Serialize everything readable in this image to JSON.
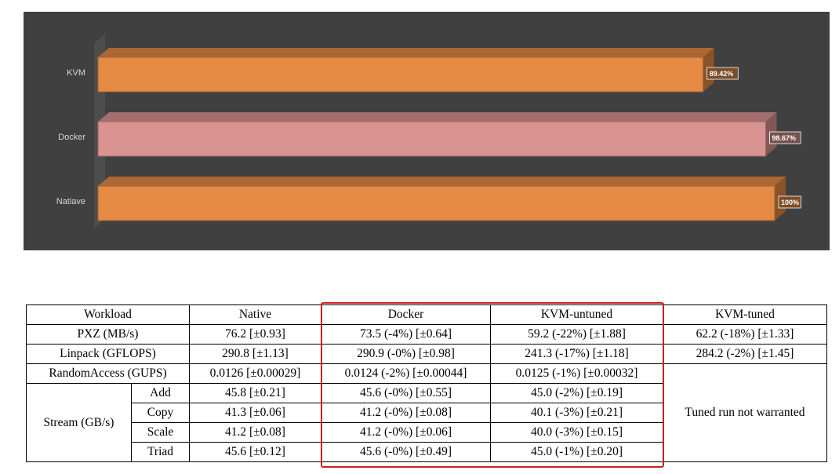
{
  "chart_data": {
    "type": "bar",
    "orientation": "horizontal",
    "style": "3d",
    "categories": [
      "KVM",
      "Docker",
      "Natiave"
    ],
    "values": [
      89.42,
      98.67,
      100
    ],
    "value_labels": [
      "89.42%",
      "98.67%",
      "100%"
    ],
    "colors": [
      "#e48a45",
      "#d99391",
      "#e48a45"
    ],
    "xlim": [
      0,
      100
    ],
    "background": "#404040",
    "grid": false,
    "legend": "none"
  },
  "table": {
    "headers": [
      "Workload",
      "Native",
      "Docker",
      "KVM-untuned",
      "KVM-tuned"
    ],
    "rows": [
      {
        "workload": "PXZ (MB/s)",
        "native": "76.2 [±0.93]",
        "docker": "73.5 (-4%) [±0.64]",
        "kvm_untuned": "59.2 (-22%) [±1.88]",
        "kvm_tuned": "62.2 (-18%) [±1.33]"
      },
      {
        "workload": "Linpack (GFLOPS)",
        "native": "290.8 [±1.13]",
        "docker": "290.9 (-0%) [±0.98]",
        "kvm_untuned": "241.3 (-17%) [±1.18]",
        "kvm_tuned": "284.2 (-2%) [±1.45]"
      },
      {
        "workload": "RandomAccess (GUPS)",
        "native": "0.0126 [±0.00029]",
        "docker": "0.0124 (-2%) [±0.00044]",
        "kvm_untuned": "0.0125 (-1%) [±0.00032]"
      }
    ],
    "stream": {
      "label": "Stream (GB/s)",
      "rows": [
        {
          "sub": "Add",
          "native": "45.8 [±0.21]",
          "docker": "45.6 (-0%) [±0.55]",
          "kvm_untuned": "45.0 (-2%) [±0.19]"
        },
        {
          "sub": "Copy",
          "native": "41.3 [±0.06]",
          "docker": "41.2 (-0%) [±0.08]",
          "kvm_untuned": "40.1 (-3%) [±0.21]"
        },
        {
          "sub": "Scale",
          "native": "41.2 [±0.08]",
          "docker": "41.2 (-0%) [±0.06]",
          "kvm_untuned": "40.0 (-3%) [±0.15]"
        },
        {
          "sub": "Triad",
          "native": "45.6 [±0.12]",
          "docker": "45.6 (-0%) [±0.49]",
          "kvm_untuned": "45.0 (-1%) [±0.20]"
        }
      ]
    },
    "tuned_note": "Tuned run not warranted",
    "highlight_color": "#d01c1f"
  }
}
